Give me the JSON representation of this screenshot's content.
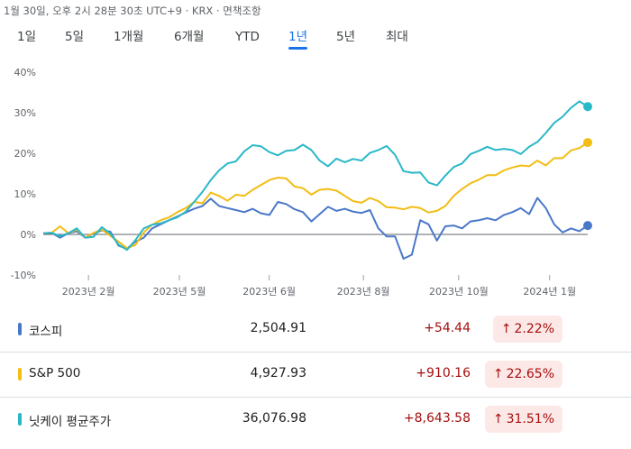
{
  "header": {
    "timestamp": "1월 30일, 오후 2시 28분 30초 UTC+9 · KRX · 면책조항"
  },
  "tabs": [
    {
      "label": "1일",
      "active": false
    },
    {
      "label": "5일",
      "active": false
    },
    {
      "label": "1개월",
      "active": false
    },
    {
      "label": "6개월",
      "active": false
    },
    {
      "label": "YTD",
      "active": false
    },
    {
      "label": "1년",
      "active": true
    },
    {
      "label": "5년",
      "active": false
    },
    {
      "label": "최대",
      "active": false
    }
  ],
  "chart_data": {
    "type": "line",
    "x_tick_labels": [
      "2023년 2월",
      "2023년 5월",
      "2023년 6월",
      "2023년 8월",
      "2023년 10월",
      "2024년 1월"
    ],
    "y_tick_labels": [
      "40%",
      "30%",
      "20%",
      "10%",
      "0%",
      "-10%"
    ],
    "ylim": [
      -10,
      40
    ],
    "y_unit": "%",
    "grid": false,
    "series": [
      {
        "name": "코스피",
        "color": "#4a78c9",
        "values": [
          0.3,
          0.4,
          -0.8,
          0.3,
          0.8,
          -0.8,
          0.2,
          1.0,
          0.7,
          -2.8,
          -3.5,
          -1.8,
          -0.8,
          1.5,
          2.5,
          3.5,
          4.4,
          5.4,
          6.3,
          7.0,
          8.8,
          7.0,
          6.5,
          6.0,
          5.5,
          6.3,
          5.2,
          4.8,
          8.0,
          7.5,
          6.2,
          5.5,
          3.2,
          5.0,
          6.8,
          5.8,
          6.3,
          5.6,
          5.3,
          6.0,
          1.5,
          -0.5,
          -0.5,
          -6.0,
          -5.0,
          3.5,
          2.5,
          -1.5,
          2.0,
          2.2,
          1.5,
          3.2,
          3.5,
          4.0,
          3.5,
          4.8,
          5.5,
          6.5,
          5.0,
          9.0,
          6.5,
          2.5,
          0.5,
          1.5,
          0.8,
          2.2
        ]
      },
      {
        "name": "S&P 500",
        "color": "#f2bd14",
        "values": [
          0.3,
          0.4,
          2.0,
          0.3,
          1.2,
          -0.8,
          0.4,
          1.2,
          -0.3,
          -1.8,
          -3.4,
          -2.6,
          0.5,
          2.4,
          3.5,
          4.2,
          5.5,
          6.5,
          8.0,
          7.7,
          10.3,
          9.5,
          8.3,
          9.8,
          9.5,
          11.0,
          12.2,
          13.4,
          14.0,
          13.8,
          11.8,
          11.4,
          9.8,
          11.0,
          11.2,
          10.8,
          9.5,
          8.2,
          7.8,
          9.0,
          8.2,
          6.7,
          6.6,
          6.2,
          6.8,
          6.5,
          5.4,
          5.8,
          7.0,
          9.5,
          11.2,
          12.6,
          13.5,
          14.6,
          14.6,
          15.8,
          16.5,
          17.0,
          16.8,
          18.2,
          17.0,
          18.8,
          18.8,
          20.7,
          21.3,
          22.65
        ]
      },
      {
        "name": "닛케이 평균주가",
        "color": "#29b8c8",
        "values": [
          0.3,
          0.4,
          -0.4,
          0.3,
          1.5,
          -0.8,
          -0.6,
          1.8,
          0.2,
          -2.5,
          -3.8,
          -1.4,
          1.5,
          2.4,
          2.7,
          3.5,
          4.2,
          5.6,
          8.0,
          10.5,
          13.4,
          15.8,
          17.5,
          18.0,
          20.5,
          22.0,
          21.7,
          20.3,
          19.5,
          20.6,
          20.8,
          22.1,
          20.8,
          18.2,
          16.8,
          18.7,
          17.8,
          18.6,
          18.2,
          20.1,
          20.8,
          21.8,
          19.6,
          15.6,
          15.2,
          15.3,
          12.8,
          12.1,
          14.5,
          16.6,
          17.5,
          19.8,
          20.6,
          21.6,
          20.8,
          21.1,
          20.8,
          19.8,
          21.6,
          22.8,
          25.0,
          27.5,
          29.0,
          31.2,
          32.8,
          31.51
        ]
      }
    ]
  },
  "legend": [
    {
      "name": "코스피",
      "color": "#4a78c9",
      "price": "2,504.91",
      "change": "+54.44",
      "percent": "2.22%"
    },
    {
      "name": "S&P 500",
      "color": "#f2bd14",
      "price": "4,927.93",
      "change": "+910.16",
      "percent": "22.65%"
    },
    {
      "name": "닛케이 평균주가",
      "color": "#29b8c8",
      "price": "36,076.98",
      "change": "+8,643.58",
      "percent": "31.51%"
    }
  ],
  "icons": {
    "change_arrow": "arrow-up-icon",
    "arrow_glyph": "↑"
  }
}
